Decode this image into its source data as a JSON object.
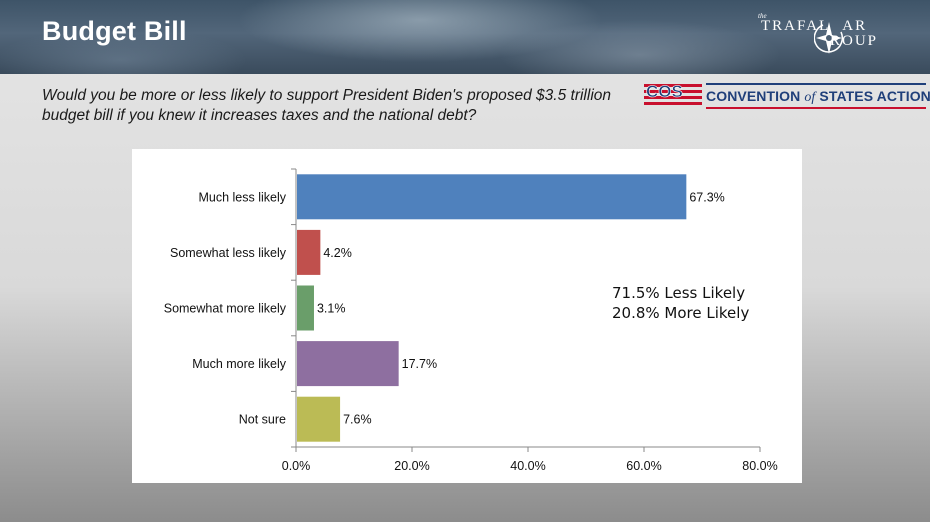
{
  "slide": {
    "title": "Budget Bill",
    "question": "Would you be more or less likely to support President Biden's proposed $3.5 trillion budget bill if you knew it increases taxes and the national debt?",
    "brand": {
      "the": "the",
      "line1": "TRAFAL",
      "line1b": "AR",
      "line2": "ROUP"
    },
    "cos": {
      "abbr": "COS",
      "name_pre": "CONVENTION ",
      "name_of": "of",
      "name_post": " STATES ACTION"
    },
    "summary": [
      "71.5% Less Likely",
      "20.8% More Likely"
    ]
  },
  "chart_data": {
    "type": "bar",
    "orientation": "horizontal",
    "categories": [
      "Much less likely",
      "Somewhat less likely",
      "Somewhat more likely",
      "Much more likely",
      "Not sure"
    ],
    "values": [
      67.3,
      4.2,
      3.1,
      17.7,
      7.6
    ],
    "data_labels": [
      "67.3%",
      "4.2%",
      "3.1%",
      "17.7%",
      "7.6%"
    ],
    "colors": [
      "#4f81bd",
      "#c0504d",
      "#6a9e6a",
      "#8e6fa0",
      "#bbbb55"
    ],
    "xlim": [
      0,
      80
    ],
    "xticks": [
      0,
      20,
      40,
      60,
      80
    ],
    "xtick_labels": [
      "0.0%",
      "20.0%",
      "40.0%",
      "60.0%",
      "80.0%"
    ],
    "grid": false
  }
}
